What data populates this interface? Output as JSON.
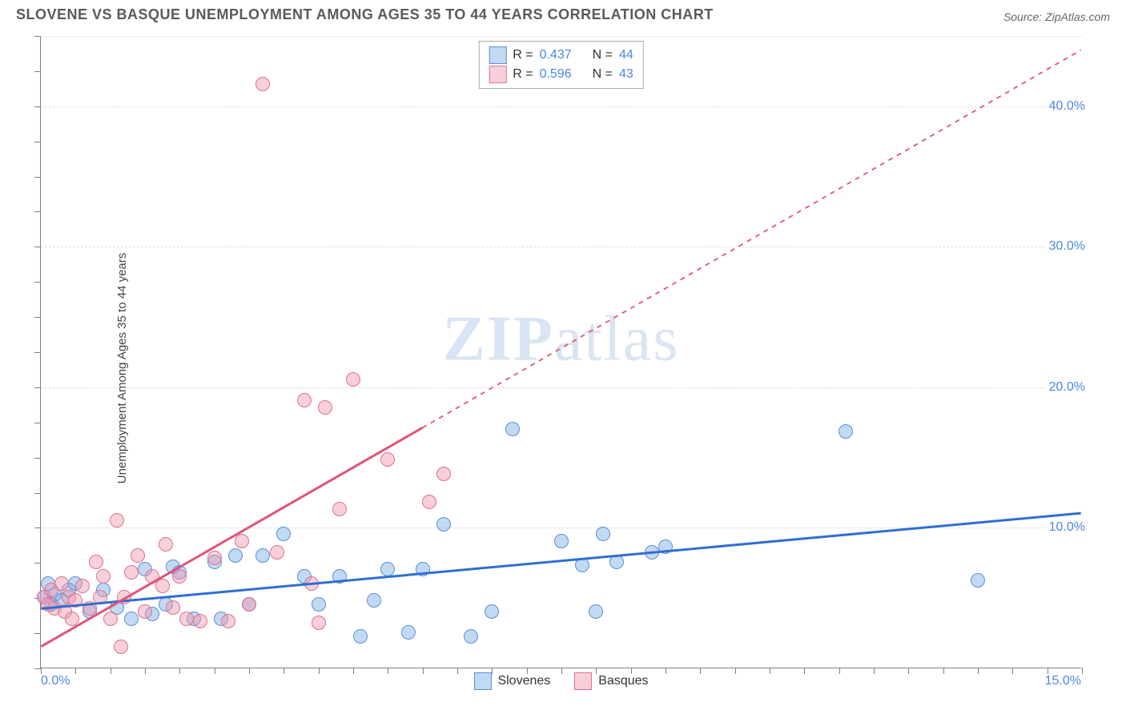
{
  "header": {
    "title": "SLOVENE VS BASQUE UNEMPLOYMENT AMONG AGES 35 TO 44 YEARS CORRELATION CHART",
    "source": "Source: ZipAtlas.com"
  },
  "chart": {
    "type": "scatter",
    "ylabel": "Unemployment Among Ages 35 to 44 years",
    "watermark": "ZIPatlas",
    "background_color": "#ffffff",
    "grid_color": "#dcdcdc",
    "axis_color": "#808080",
    "xlim": [
      0,
      15
    ],
    "ylim": [
      0,
      45
    ],
    "x_tick_step": 0.5,
    "y_tick_step": 2.5,
    "y_gridlines": [
      10,
      20,
      30,
      40,
      45
    ],
    "y_right_labels": [
      {
        "value": 10,
        "text": "10.0%"
      },
      {
        "value": 20,
        "text": "20.0%"
      },
      {
        "value": 30,
        "text": "30.0%"
      },
      {
        "value": 40,
        "text": "40.0%"
      }
    ],
    "x_left_label": "0.0%",
    "x_right_label": "15.0%",
    "marker_radius": 9,
    "marker_border_width": 1.5,
    "series": [
      {
        "name": "Slovenes",
        "fill_color": "rgba(120, 170, 230, 0.45)",
        "border_color": "#5b8fd6",
        "trend_color": "#2e6fd1",
        "trend_width": 3,
        "trend_dash": "none",
        "trend": {
          "x1": 0,
          "y1": 4.2,
          "x2": 15,
          "y2": 11.0,
          "solid_until_x": 15
        },
        "points": [
          [
            0.05,
            5.0
          ],
          [
            0.1,
            6.0
          ],
          [
            0.15,
            4.5
          ],
          [
            0.2,
            5.2
          ],
          [
            0.3,
            4.8
          ],
          [
            0.4,
            5.5
          ],
          [
            0.5,
            6.0
          ],
          [
            0.7,
            4.0
          ],
          [
            0.9,
            5.5
          ],
          [
            1.1,
            4.3
          ],
          [
            1.3,
            3.5
          ],
          [
            1.5,
            7.0
          ],
          [
            1.6,
            3.8
          ],
          [
            1.8,
            4.5
          ],
          [
            1.9,
            7.2
          ],
          [
            2.0,
            6.8
          ],
          [
            2.2,
            3.5
          ],
          [
            2.5,
            7.5
          ],
          [
            2.6,
            3.5
          ],
          [
            2.8,
            8.0
          ],
          [
            3.0,
            4.5
          ],
          [
            3.2,
            8.0
          ],
          [
            3.5,
            9.5
          ],
          [
            3.8,
            6.5
          ],
          [
            4.0,
            4.5
          ],
          [
            4.3,
            6.5
          ],
          [
            4.6,
            2.2
          ],
          [
            4.8,
            4.8
          ],
          [
            5.0,
            7.0
          ],
          [
            5.3,
            2.5
          ],
          [
            5.5,
            7.0
          ],
          [
            5.8,
            10.2
          ],
          [
            6.2,
            2.2
          ],
          [
            6.5,
            4.0
          ],
          [
            6.8,
            17.0
          ],
          [
            7.5,
            9.0
          ],
          [
            7.8,
            7.3
          ],
          [
            8.0,
            4.0
          ],
          [
            8.1,
            9.5
          ],
          [
            8.3,
            7.5
          ],
          [
            8.8,
            8.2
          ],
          [
            9.0,
            8.6
          ],
          [
            11.6,
            16.8
          ],
          [
            13.5,
            6.2
          ]
        ]
      },
      {
        "name": "Basques",
        "fill_color": "rgba(240, 150, 170, 0.45)",
        "border_color": "#e0708f",
        "trend_color": "#e05577",
        "trend_width": 3,
        "trend_dash_after": "6,6",
        "trend": {
          "x1": 0,
          "y1": 1.5,
          "x2": 15,
          "y2": 44,
          "solid_until_x": 5.5
        },
        "points": [
          [
            0.05,
            5.0
          ],
          [
            0.1,
            4.5
          ],
          [
            0.15,
            5.5
          ],
          [
            0.2,
            4.2
          ],
          [
            0.3,
            6.0
          ],
          [
            0.35,
            4.0
          ],
          [
            0.4,
            5.0
          ],
          [
            0.45,
            3.5
          ],
          [
            0.5,
            4.8
          ],
          [
            0.6,
            5.8
          ],
          [
            0.7,
            4.2
          ],
          [
            0.8,
            7.5
          ],
          [
            0.85,
            5.0
          ],
          [
            0.9,
            6.5
          ],
          [
            1.0,
            3.5
          ],
          [
            1.1,
            10.5
          ],
          [
            1.15,
            1.5
          ],
          [
            1.2,
            5.0
          ],
          [
            1.3,
            6.8
          ],
          [
            1.4,
            8.0
          ],
          [
            1.5,
            4.0
          ],
          [
            1.6,
            6.5
          ],
          [
            1.75,
            5.8
          ],
          [
            1.8,
            8.8
          ],
          [
            1.9,
            4.3
          ],
          [
            2.0,
            6.5
          ],
          [
            2.1,
            3.5
          ],
          [
            2.3,
            3.3
          ],
          [
            2.5,
            7.8
          ],
          [
            2.7,
            3.3
          ],
          [
            2.9,
            9.0
          ],
          [
            3.0,
            4.5
          ],
          [
            3.2,
            41.5
          ],
          [
            3.4,
            8.2
          ],
          [
            3.8,
            19.0
          ],
          [
            3.9,
            6.0
          ],
          [
            4.1,
            18.5
          ],
          [
            4.3,
            11.3
          ],
          [
            4.5,
            20.5
          ],
          [
            5.0,
            14.8
          ],
          [
            5.6,
            11.8
          ],
          [
            5.8,
            13.8
          ],
          [
            4.0,
            3.2
          ]
        ]
      }
    ],
    "legend_top": [
      {
        "series": 0,
        "r_label": "R =",
        "r_value": "0.437",
        "n_label": "N =",
        "n_value": "44"
      },
      {
        "series": 1,
        "r_label": "R =",
        "r_value": "0.596",
        "n_label": "N =",
        "n_value": "43"
      }
    ],
    "legend_bottom": [
      {
        "series": 0,
        "label": "Slovenes"
      },
      {
        "series": 1,
        "label": "Basques"
      }
    ]
  }
}
